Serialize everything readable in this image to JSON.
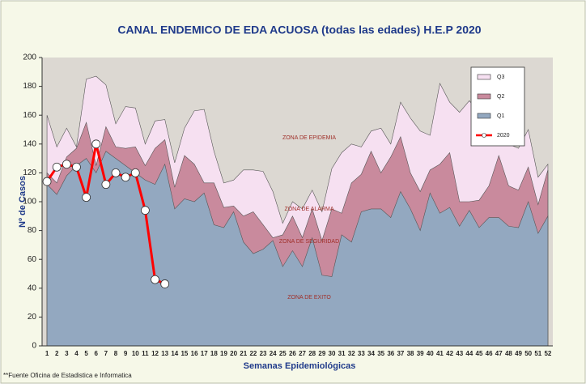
{
  "chart_data": {
    "type": "area",
    "title": "CANAL ENDEMICO DE EDA ACUOSA (todas las edades) H.E.P 2020",
    "xlabel": "Semanas Epidemiológicas",
    "ylabel": "Nº de Casos",
    "footnote": "**Fuente Oficina de Estadistica e Informatica",
    "annotations": [
      "ZONA DE EPIDEMIA",
      "ZONA DE ALARMA",
      "ZONA DE SEGURIDAD",
      "ZONA DE EXITO"
    ],
    "categories": [
      "1",
      "2",
      "3",
      "4",
      "5",
      "6",
      "7",
      "8",
      "9",
      "10",
      "11",
      "12",
      "13",
      "14",
      "15",
      "16",
      "17",
      "18",
      "19",
      "20",
      "21",
      "22",
      "23",
      "24",
      "25",
      "26",
      "27",
      "28",
      "29",
      "30",
      "31",
      "32",
      "33",
      "34",
      "35",
      "36",
      "37",
      "38",
      "39",
      "40",
      "41",
      "42",
      "43",
      "44",
      "45",
      "46",
      "47",
      "48",
      "49",
      "50",
      "51",
      "52"
    ],
    "ylim": [
      0,
      200
    ],
    "yticks": [
      0,
      20,
      40,
      60,
      80,
      100,
      120,
      140,
      160,
      180,
      200
    ],
    "grid": false,
    "legend": "upper right",
    "series": [
      {
        "name": "Q3",
        "color": "#f6e0f1",
        "values": [
          160,
          138,
          151,
          138,
          185,
          187,
          181,
          154,
          166,
          165,
          140,
          156,
          157,
          127,
          151,
          163,
          164,
          135,
          113,
          115,
          122,
          122,
          121,
          107,
          85,
          100,
          95,
          108,
          93,
          123,
          134,
          140,
          138,
          149,
          151,
          140,
          169,
          158,
          149,
          146,
          182,
          169,
          162,
          170,
          162,
          146,
          163,
          140,
          137,
          150,
          117,
          126
        ]
      },
      {
        "name": "Q2",
        "color": "#c98a9d",
        "values": [
          120,
          113,
          131,
          137,
          155,
          125,
          152,
          138,
          137,
          138,
          125,
          137,
          143,
          110,
          132,
          126,
          113,
          113,
          96,
          97,
          90,
          93,
          84,
          75,
          77,
          90,
          75,
          95,
          73,
          95,
          92,
          113,
          119,
          135,
          120,
          131,
          145,
          120,
          107,
          122,
          126,
          134,
          100,
          100,
          101,
          111,
          132,
          111,
          108,
          124,
          98,
          122
        ]
      },
      {
        "name": "Q1",
        "color": "#93a8c0",
        "values": [
          112,
          105,
          118,
          125,
          130,
          120,
          135,
          130,
          125,
          120,
          115,
          112,
          126,
          95,
          102,
          100,
          106,
          84,
          82,
          93,
          72,
          64,
          67,
          73,
          55,
          66,
          55,
          75,
          49,
          48,
          77,
          72,
          93,
          95,
          95,
          89,
          107,
          95,
          80,
          106,
          92,
          96,
          83,
          94,
          82,
          89,
          89,
          83,
          82,
          100,
          78,
          90
        ]
      },
      {
        "name": "2020",
        "type": "line",
        "color": "#ff0000",
        "values": [
          114,
          124,
          126,
          124,
          103,
          140,
          112,
          120,
          117,
          120,
          94,
          46,
          43,
          null,
          null,
          null,
          null,
          null,
          null,
          null,
          null,
          null,
          null,
          null,
          null,
          null,
          null,
          null,
          null,
          null,
          null,
          null,
          null,
          null,
          null,
          null,
          null,
          null,
          null,
          null,
          null,
          null,
          null,
          null,
          null,
          null,
          null,
          null,
          null,
          null,
          null,
          null
        ]
      }
    ]
  }
}
